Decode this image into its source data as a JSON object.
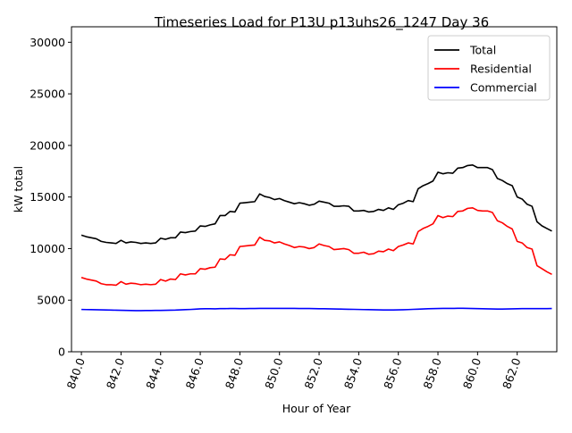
{
  "chart_data": {
    "type": "line",
    "title": "Timeseries Load for P13U p13uhs26_1247  Day 36",
    "xlabel": "Hour of Year",
    "ylabel": "kW total",
    "xlim": [
      839.5,
      864.0
    ],
    "ylim": [
      0,
      31500
    ],
    "grid": false,
    "legend_position": "top-right",
    "x_ticks": [
      840,
      842,
      844,
      846,
      848,
      850,
      852,
      854,
      856,
      858,
      860,
      862
    ],
    "x_tick_labels": [
      "840.0",
      "842.0",
      "844.0",
      "846.0",
      "848.0",
      "850.0",
      "852.0",
      "854.0",
      "856.0",
      "858.0",
      "860.0",
      "862.0"
    ],
    "y_ticks": [
      0,
      5000,
      10000,
      15000,
      20000,
      25000,
      30000
    ],
    "y_tick_labels": [
      "0",
      "5000",
      "10000",
      "15000",
      "20000",
      "25000",
      "30000"
    ],
    "x": [
      840.0,
      840.25,
      840.5,
      840.75,
      841.0,
      841.25,
      841.5,
      841.75,
      842.0,
      842.25,
      842.5,
      842.75,
      843.0,
      843.25,
      843.5,
      843.75,
      844.0,
      844.25,
      844.5,
      844.75,
      845.0,
      845.25,
      845.5,
      845.75,
      846.0,
      846.25,
      846.5,
      846.75,
      847.0,
      847.25,
      847.5,
      847.75,
      848.0,
      848.25,
      848.5,
      848.75,
      849.0,
      849.25,
      849.5,
      849.75,
      850.0,
      850.25,
      850.5,
      850.75,
      851.0,
      851.25,
      851.5,
      851.75,
      852.0,
      852.25,
      852.5,
      852.75,
      853.0,
      853.25,
      853.5,
      853.75,
      854.0,
      854.25,
      854.5,
      854.75,
      855.0,
      855.25,
      855.5,
      855.75,
      856.0,
      856.25,
      856.5,
      856.75,
      857.0,
      857.25,
      857.5,
      857.75,
      858.0,
      858.25,
      858.5,
      858.75,
      859.0,
      859.25,
      859.5,
      859.75,
      860.0,
      860.25,
      860.5,
      860.75,
      861.0,
      861.25,
      861.5,
      861.75,
      862.0,
      862.25,
      862.5,
      862.75,
      863.0,
      863.25,
      863.5,
      863.75
    ],
    "series": [
      {
        "name": "Total",
        "color": "#000000",
        "values": [
          11300,
          11150,
          11050,
          10950,
          10700,
          10600,
          10550,
          10500,
          10800,
          10550,
          10650,
          10600,
          10500,
          10550,
          10500,
          10550,
          11000,
          10900,
          11050,
          11050,
          11600,
          11550,
          11650,
          11700,
          12200,
          12150,
          12300,
          12400,
          13200,
          13200,
          13600,
          13550,
          14400,
          14450,
          14500,
          14550,
          15300,
          15050,
          14950,
          14750,
          14850,
          14650,
          14500,
          14350,
          14450,
          14350,
          14200,
          14300,
          14600,
          14500,
          14400,
          14100,
          14100,
          14150,
          14100,
          13650,
          13650,
          13700,
          13550,
          13600,
          13800,
          13700,
          13950,
          13800,
          14250,
          14400,
          14650,
          14550,
          15800,
          16100,
          16300,
          16550,
          17400,
          17250,
          17350,
          17300,
          17800,
          17850,
          18050,
          18100,
          17850,
          17850,
          17850,
          17650,
          16800,
          16600,
          16300,
          16100,
          15000,
          14800,
          14300,
          14100,
          12600,
          12200,
          11950,
          11700
        ]
      },
      {
        "name": "Residential",
        "color": "#ff0000",
        "values": [
          7200,
          7050,
          6950,
          6850,
          6600,
          6500,
          6500,
          6450,
          6800,
          6550,
          6650,
          6600,
          6500,
          6550,
          6500,
          6550,
          7000,
          6850,
          7050,
          7000,
          7550,
          7450,
          7550,
          7550,
          8050,
          8000,
          8150,
          8200,
          9000,
          8950,
          9400,
          9350,
          10200,
          10250,
          10300,
          10350,
          11100,
          10800,
          10750,
          10550,
          10650,
          10450,
          10300,
          10100,
          10200,
          10150,
          10000,
          10100,
          10450,
          10300,
          10200,
          9900,
          9950,
          10000,
          9900,
          9550,
          9550,
          9650,
          9450,
          9500,
          9750,
          9700,
          9950,
          9800,
          10200,
          10350,
          10550,
          10450,
          11650,
          11950,
          12150,
          12400,
          13200,
          13000,
          13150,
          13100,
          13600,
          13650,
          13900,
          13950,
          13700,
          13650,
          13650,
          13500,
          12700,
          12500,
          12150,
          11900,
          10700,
          10550,
          10100,
          9950,
          8350,
          8050,
          7750,
          7500
        ]
      },
      {
        "name": "Commercial",
        "color": "#0000ff",
        "values": [
          4100,
          4090,
          4080,
          4070,
          4060,
          4050,
          4040,
          4030,
          4020,
          4010,
          4000,
          3990,
          3990,
          4000,
          4000,
          4010,
          4010,
          4020,
          4030,
          4040,
          4060,
          4080,
          4100,
          4130,
          4160,
          4170,
          4170,
          4160,
          4180,
          4180,
          4190,
          4190,
          4180,
          4180,
          4190,
          4190,
          4200,
          4200,
          4200,
          4200,
          4200,
          4200,
          4200,
          4200,
          4190,
          4190,
          4190,
          4180,
          4170,
          4170,
          4160,
          4150,
          4140,
          4130,
          4120,
          4110,
          4100,
          4090,
          4080,
          4070,
          4060,
          4050,
          4050,
          4050,
          4060,
          4070,
          4090,
          4110,
          4130,
          4150,
          4170,
          4180,
          4190,
          4200,
          4200,
          4200,
          4210,
          4210,
          4200,
          4190,
          4180,
          4170,
          4160,
          4150,
          4140,
          4140,
          4150,
          4160,
          4170,
          4180,
          4180,
          4180,
          4180,
          4180,
          4180,
          4190
        ]
      }
    ]
  }
}
